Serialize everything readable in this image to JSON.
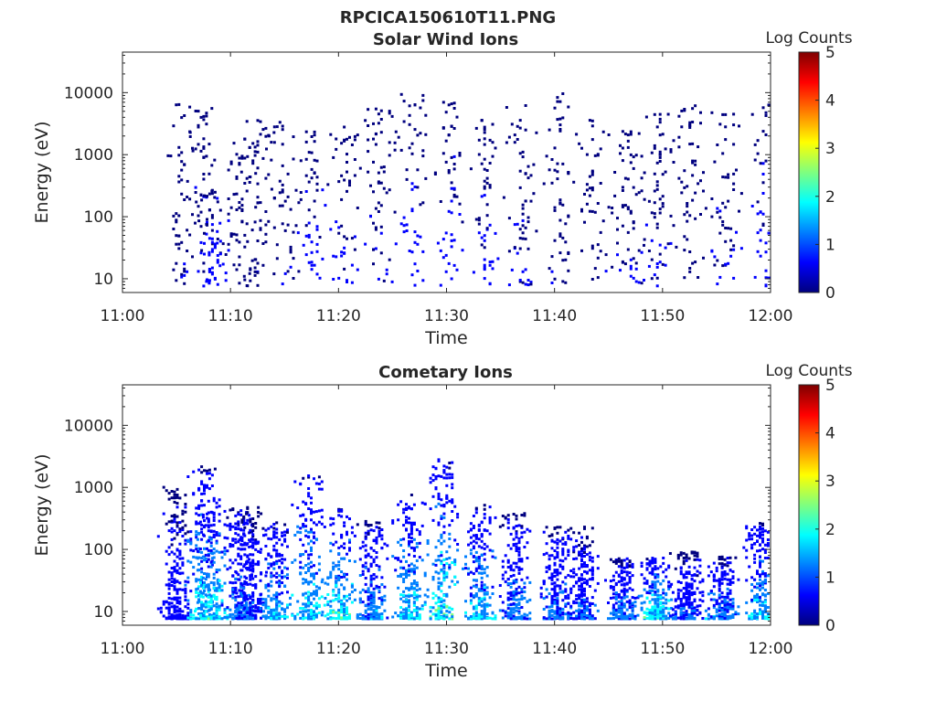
{
  "figure_title": "RPCICA150610T11.PNG",
  "colormap": [
    "#00007f",
    "#0000ff",
    "#007fff",
    "#00ffff",
    "#7fff7f",
    "#ffff00",
    "#ff7f00",
    "#ff0000",
    "#7f0000"
  ],
  "chart_data": [
    {
      "type": "heatmap",
      "title": "Solar Wind Ions",
      "xlabel": "Time",
      "ylabel": "Energy (eV)",
      "x_ticks": [
        "11:00",
        "11:10",
        "11:20",
        "11:30",
        "11:40",
        "11:50",
        "12:00"
      ],
      "x_range_minutes": [
        0,
        60
      ],
      "y_scale": "log",
      "y_ticks": [
        "10",
        "100",
        "1000",
        "10000"
      ],
      "ylim": [
        6,
        45000
      ],
      "colorbar": {
        "label": "Log Counts",
        "ticks": [
          "0",
          "1",
          "2",
          "3",
          "4",
          "5"
        ],
        "range": [
          0,
          5
        ]
      },
      "activity": [
        {
          "minute": 5.2,
          "lo": 8,
          "hi": 8000,
          "level": 0.3
        },
        {
          "minute": 7.5,
          "lo": 8,
          "hi": 9000,
          "level": 0.5
        },
        {
          "minute": 8.3,
          "lo": 8,
          "hi": 300,
          "level": 0.6
        },
        {
          "minute": 10.8,
          "lo": 8,
          "hi": 2000,
          "level": 0.3
        },
        {
          "minute": 12.5,
          "lo": 8,
          "hi": 4000,
          "level": 0.3
        },
        {
          "minute": 14.8,
          "lo": 8,
          "hi": 3500,
          "level": 0.3
        },
        {
          "minute": 17.5,
          "lo": 8,
          "hi": 2500,
          "level": 0.6
        },
        {
          "minute": 20.5,
          "lo": 8,
          "hi": 3000,
          "level": 0.5
        },
        {
          "minute": 23.7,
          "lo": 8,
          "hi": 8000,
          "level": 0.4
        },
        {
          "minute": 26.8,
          "lo": 8,
          "hi": 10000,
          "level": 0.6
        },
        {
          "minute": 30.2,
          "lo": 8,
          "hi": 8000,
          "level": 0.6
        },
        {
          "minute": 33.5,
          "lo": 8,
          "hi": 4000,
          "level": 0.5
        },
        {
          "minute": 36.8,
          "lo": 8,
          "hi": 7000,
          "level": 0.4
        },
        {
          "minute": 40.5,
          "lo": 8,
          "hi": 12000,
          "level": 0.3
        },
        {
          "minute": 43.5,
          "lo": 8,
          "hi": 4000,
          "level": 0.3
        },
        {
          "minute": 46.8,
          "lo": 8,
          "hi": 2500,
          "level": 0.4
        },
        {
          "minute": 49.5,
          "lo": 8,
          "hi": 5000,
          "level": 0.4
        },
        {
          "minute": 52.5,
          "lo": 8,
          "hi": 8000,
          "level": 0.3
        },
        {
          "minute": 55.8,
          "lo": 8,
          "hi": 8000,
          "level": 0.4
        },
        {
          "minute": 59.3,
          "lo": 8,
          "hi": 8000,
          "level": 0.6
        }
      ]
    },
    {
      "type": "heatmap",
      "title": "Cometary Ions",
      "xlabel": "Time",
      "ylabel": "Energy (eV)",
      "x_ticks": [
        "11:00",
        "11:10",
        "11:20",
        "11:30",
        "11:40",
        "11:50",
        "12:00"
      ],
      "x_range_minutes": [
        0,
        60
      ],
      "y_scale": "log",
      "y_ticks": [
        "10",
        "100",
        "1000",
        "10000"
      ],
      "ylim": [
        6,
        45000
      ],
      "colorbar": {
        "label": "Log Counts",
        "ticks": [
          "0",
          "1",
          "2",
          "3",
          "4",
          "5"
        ],
        "range": [
          0,
          5
        ]
      },
      "activity": [
        {
          "minute": 4.8,
          "lo": 8,
          "hi": 1300,
          "level": 0.8
        },
        {
          "minute": 7.3,
          "lo": 8,
          "hi": 2300,
          "level": 1.8
        },
        {
          "minute": 8.2,
          "lo": 8,
          "hi": 700,
          "level": 1.9
        },
        {
          "minute": 10.7,
          "lo": 8,
          "hi": 500,
          "level": 1.3
        },
        {
          "minute": 11.8,
          "lo": 8,
          "hi": 500,
          "level": 1.0
        },
        {
          "minute": 14.0,
          "lo": 8,
          "hi": 300,
          "level": 1.6
        },
        {
          "minute": 17.2,
          "lo": 8,
          "hi": 1800,
          "level": 1.8
        },
        {
          "minute": 20.0,
          "lo": 8,
          "hi": 500,
          "level": 2.0
        },
        {
          "minute": 23.0,
          "lo": 8,
          "hi": 300,
          "level": 1.4
        },
        {
          "minute": 26.5,
          "lo": 8,
          "hi": 800,
          "level": 1.8
        },
        {
          "minute": 29.5,
          "lo": 8,
          "hi": 3000,
          "level": 2.0
        },
        {
          "minute": 33.0,
          "lo": 8,
          "hi": 550,
          "level": 1.7
        },
        {
          "minute": 36.2,
          "lo": 8,
          "hi": 400,
          "level": 1.3
        },
        {
          "minute": 40.0,
          "lo": 8,
          "hi": 250,
          "level": 1.2
        },
        {
          "minute": 42.5,
          "lo": 8,
          "hi": 250,
          "level": 1.0
        },
        {
          "minute": 46.2,
          "lo": 8,
          "hi": 80,
          "level": 1.3
        },
        {
          "minute": 49.3,
          "lo": 8,
          "hi": 80,
          "level": 2.0
        },
        {
          "minute": 52.2,
          "lo": 8,
          "hi": 100,
          "level": 1.0
        },
        {
          "minute": 55.5,
          "lo": 8,
          "hi": 80,
          "level": 1.4
        },
        {
          "minute": 59.0,
          "lo": 8,
          "hi": 300,
          "level": 1.7
        }
      ]
    }
  ]
}
